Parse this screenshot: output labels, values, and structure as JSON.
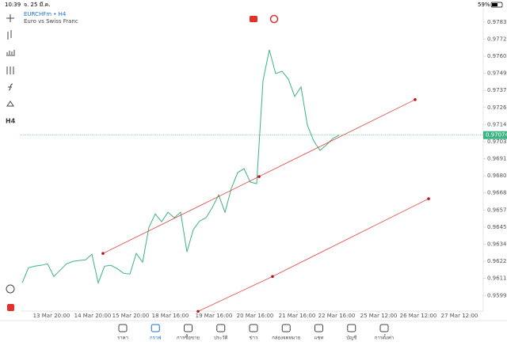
{
  "status": {
    "time": "10:39",
    "date": "จ. 25 มี.ค.",
    "battery": "59%"
  },
  "header": {
    "symbol": "EURCHFm • H4",
    "description": "Euro vs Swiss Franc"
  },
  "toolbar": {
    "timeframe": "H4"
  },
  "tabs": [
    "ราคา",
    "กราฟ",
    "การซื้อขาย",
    "ประวัติ",
    "ข่าว",
    "กล่องจดหมาย",
    "แชท",
    "บัญชี",
    "การตั้งค่า"
  ],
  "chart_data": {
    "type": "line",
    "x": [
      0,
      1,
      2,
      3,
      4,
      5,
      6,
      7,
      8,
      9,
      10,
      11,
      12,
      13,
      14,
      15,
      16,
      17,
      18,
      19,
      20,
      21,
      22,
      23,
      24,
      25,
      26,
      27,
      28,
      29,
      30,
      31,
      32,
      33,
      34,
      35,
      36,
      37,
      38,
      39,
      40,
      41,
      42,
      43,
      44,
      45,
      46,
      47,
      48,
      49,
      50
    ],
    "series": [
      {
        "color": "#3cb383",
        "values": [
          0.9608,
          0.96182,
          0.96192,
          0.96198,
          0.96208,
          0.96123,
          0.96166,
          0.96208,
          0.96224,
          0.9623,
          0.96235,
          0.96272,
          0.9608,
          0.96192,
          0.96198,
          0.96176,
          0.96144,
          0.96139,
          0.96278,
          0.96219,
          0.96454,
          0.96544,
          0.96491,
          0.96555,
          0.96518,
          0.96555,
          0.96288,
          0.96438,
          0.96496,
          0.96518,
          0.96587,
          0.96672,
          0.96555,
          0.96715,
          0.96822,
          0.96848,
          0.96758,
          0.96747,
          0.9744,
          0.97648,
          0.97488,
          0.97504,
          0.97451,
          0.97334,
          0.97398,
          0.97142,
          0.97035,
          0.96971,
          0.97008,
          0.97051,
          0.97074
        ]
      }
    ],
    "current_price": 0.97074,
    "trendlines": [
      {
        "color": "#e0312e",
        "x": [
          12.75,
          37.375,
          62
        ],
        "y": [
          0.96278,
          0.96795,
          0.97313
        ]
      },
      {
        "color": "#e0312e",
        "x": [
          27.75,
          39.5,
          64.125
        ],
        "y": [
          0.95888,
          0.96123,
          0.96646
        ]
      }
    ],
    "xlim": [
      -0.25,
      72.75
    ],
    "ylim": [
      0.9589,
      0.9793
    ],
    "xticks": [
      {
        "value": 4.625,
        "label": "13 Mar 20:00"
      },
      {
        "value": 11.125,
        "label": "14 Mar 20:00"
      },
      {
        "value": 17.125,
        "label": "15 Mar 20:00"
      },
      {
        "value": 23.375,
        "label": "18 Mar 16:00"
      },
      {
        "value": 30.25,
        "label": "19 Mar 16:00"
      },
      {
        "value": 36.75,
        "label": "20 Mar 16:00"
      },
      {
        "value": 43.375,
        "label": "21 Mar 16:00"
      },
      {
        "value": 49.625,
        "label": "22 Mar 16:00"
      },
      {
        "value": 56.25,
        "label": "25 Mar 12:00"
      },
      {
        "value": 62.5,
        "label": "26 Mar 12:00"
      },
      {
        "value": 69,
        "label": "27 Mar 12:00"
      }
    ],
    "yticks": [
      0.97835,
      {
        "value": 0.9772,
        "label": "0.97720"
      },
      0.97605,
      0.9749,
      0.97375,
      {
        "value": 0.9726,
        "label": "0.97260"
      },
      0.97145,
      {
        "value": 0.9703,
        "label": "0.97030"
      },
      0.96915,
      {
        "value": 0.968,
        "label": "0.96800"
      },
      0.96685,
      {
        "value": 0.9657,
        "label": "0.96570"
      },
      0.96455,
      {
        "value": 0.9634,
        "label": "0.96340"
      },
      0.96225,
      {
        "value": 0.9611,
        "label": "0.96110"
      },
      0.95995
    ]
  }
}
